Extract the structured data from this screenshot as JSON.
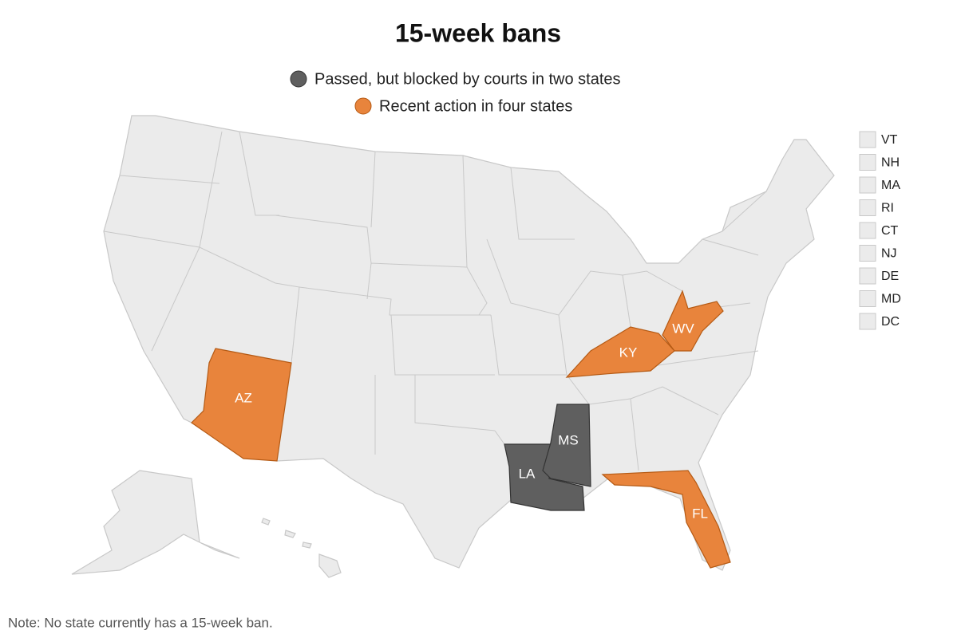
{
  "title": "15-week bans",
  "legend": {
    "items": [
      {
        "label": "Passed, but blocked by courts in two states",
        "color": "#5f5f5f",
        "states": [
          "LA",
          "MS"
        ]
      },
      {
        "label": "Recent action in four states",
        "color": "#e8843c",
        "states": [
          "AZ",
          "KY",
          "WV",
          "FL"
        ]
      }
    ]
  },
  "small_states": [
    "VT",
    "NH",
    "MA",
    "RI",
    "CT",
    "NJ",
    "DE",
    "MD",
    "DC"
  ],
  "note": "Note: No state currently has a 15-week ban."
}
